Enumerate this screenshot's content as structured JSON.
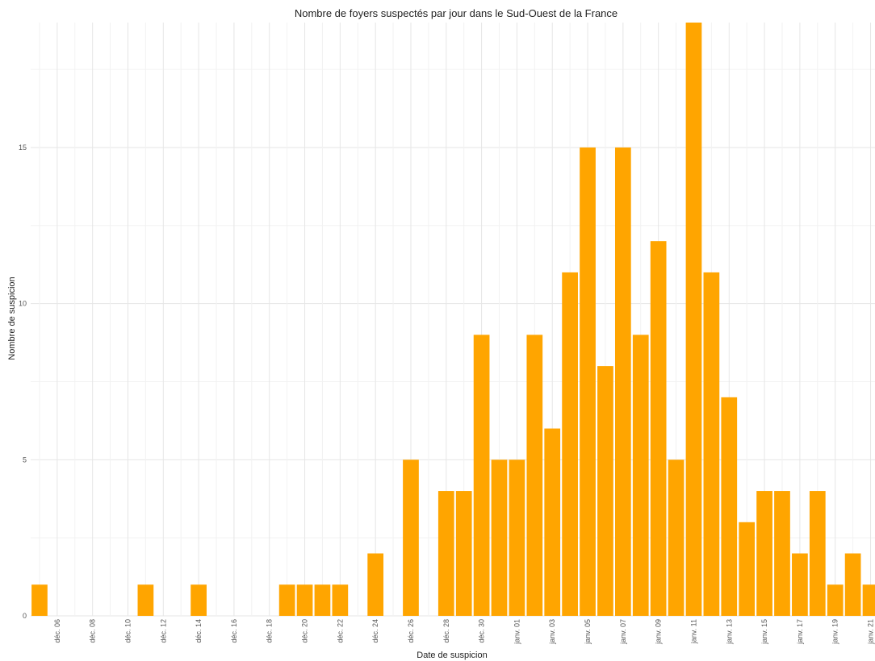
{
  "chart_data": {
    "type": "bar",
    "title": "Nombre de foyers suspectés par jour dans le Sud-Ouest de la France",
    "xlabel": "Date de suspicion",
    "ylabel": "Nombre de suspicion",
    "bar_color": "#FFA500",
    "grid": true,
    "legend": "none",
    "ylim": [
      0,
      19
    ],
    "yticks": [
      0,
      5,
      10,
      15
    ],
    "x": [
      "déc. 05",
      "déc. 06",
      "déc. 07",
      "déc. 08",
      "déc. 09",
      "déc. 10",
      "déc. 11",
      "déc. 12",
      "déc. 13",
      "déc. 14",
      "déc. 15",
      "déc. 16",
      "déc. 17",
      "déc. 18",
      "déc. 19",
      "déc. 20",
      "déc. 21",
      "déc. 22",
      "déc. 23",
      "déc. 24",
      "déc. 25",
      "déc. 26",
      "déc. 27",
      "déc. 28",
      "déc. 29",
      "déc. 30",
      "déc. 31",
      "janv. 01",
      "janv. 02",
      "janv. 03",
      "janv. 04",
      "janv. 05",
      "janv. 06",
      "janv. 07",
      "janv. 08",
      "janv. 09",
      "janv. 10",
      "janv. 11",
      "janv. 12",
      "janv. 13",
      "janv. 14",
      "janv. 15",
      "janv. 16",
      "janv. 17",
      "janv. 18",
      "janv. 19",
      "janv. 20",
      "janv. 21"
    ],
    "values": [
      1,
      0,
      0,
      0,
      0,
      0,
      1,
      0,
      0,
      1,
      0,
      0,
      0,
      0,
      1,
      1,
      1,
      1,
      0,
      2,
      0,
      5,
      0,
      4,
      4,
      9,
      5,
      5,
      9,
      6,
      11,
      15,
      8,
      15,
      9,
      12,
      5,
      19,
      11,
      7,
      3,
      4,
      4,
      2,
      4,
      1,
      2,
      1
    ],
    "xtick_labels": [
      "déc. 06",
      "déc. 08",
      "déc. 10",
      "déc. 12",
      "déc. 14",
      "déc. 16",
      "déc. 18",
      "déc. 20",
      "déc. 22",
      "déc. 24",
      "déc. 26",
      "déc. 28",
      "déc. 30",
      "janv. 01",
      "janv. 03",
      "janv. 05",
      "janv. 07",
      "janv. 09",
      "janv. 11",
      "janv. 13",
      "janv. 15",
      "janv. 17",
      "janv. 19",
      "janv. 21"
    ]
  }
}
